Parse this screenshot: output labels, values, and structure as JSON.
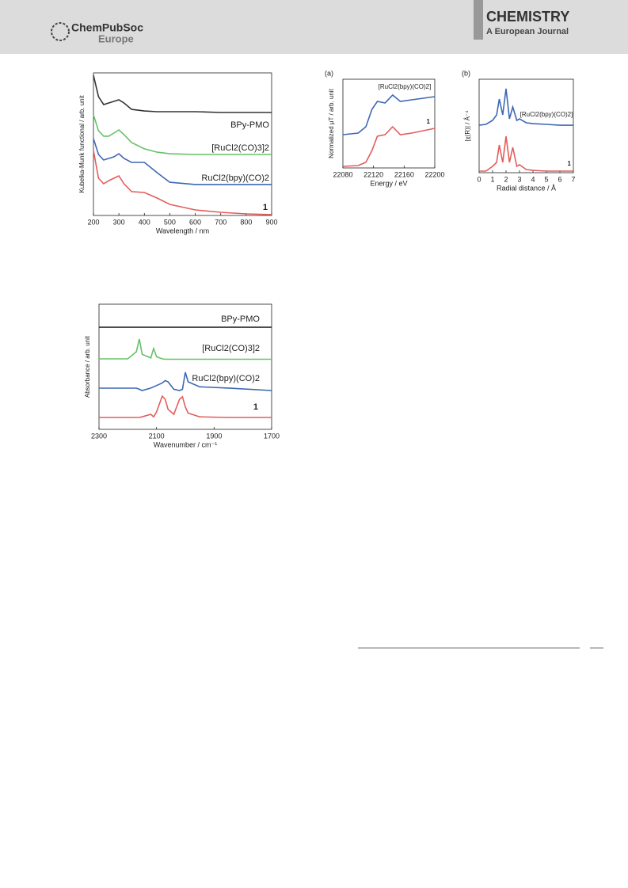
{
  "header": {
    "brand": "ChemPubSoc",
    "brand_sub": "Europe",
    "journal": "CHEMISTRY",
    "journal_sub": "A European Journal"
  },
  "chart_data": [
    {
      "type": "line",
      "xlabel": "Wavelength / nm",
      "ylabel": "Kubelka-Munk functional / arb. unit",
      "xlim": [
        200,
        900
      ],
      "ylim": [
        0,
        10
      ],
      "xticks": [
        200,
        300,
        400,
        500,
        600,
        700,
        800,
        900
      ],
      "x": [
        200,
        220,
        240,
        260,
        280,
        300,
        320,
        350,
        400,
        450,
        500,
        600,
        700,
        800,
        900
      ],
      "series": [
        {
          "name": "BPy-PMO",
          "color": "#333333",
          "values": [
            9.83,
            8.33,
            7.78,
            7.89,
            8.0,
            8.11,
            7.89,
            7.44,
            7.33,
            7.28,
            7.28,
            7.28,
            7.22,
            7.22,
            7.22
          ]
        },
        {
          "name": "[RuCl2(CO)3]2",
          "color": "#66c266",
          "values": [
            7.06,
            5.94,
            5.56,
            5.56,
            5.78,
            6.0,
            5.67,
            5.11,
            4.67,
            4.44,
            4.33,
            4.28,
            4.28,
            4.28,
            4.28
          ]
        },
        {
          "name": "RuCl2(bpy)(CO)2",
          "color": "#3d68b2",
          "values": [
            5.39,
            4.28,
            3.89,
            4.0,
            4.11,
            4.33,
            4.0,
            3.72,
            3.72,
            3.0,
            2.33,
            2.17,
            2.17,
            2.17,
            2.17
          ]
        },
        {
          "name": "1",
          "color": "#e35d5d",
          "values": [
            4.56,
            2.61,
            2.22,
            2.44,
            2.61,
            2.78,
            2.22,
            1.67,
            1.61,
            1.22,
            0.78,
            0.39,
            0.22,
            0.11,
            0.06
          ]
        }
      ]
    },
    {
      "type": "line",
      "xlabel": "Wavenumber / cm⁻¹",
      "ylabel": "Absorbance / arb. unit",
      "xlim": [
        2300,
        1700
      ],
      "ylim": [
        0,
        10
      ],
      "xticks": [
        2300,
        2100,
        1900,
        1700
      ],
      "x": [
        2300,
        2200,
        2170,
        2160,
        2150,
        2120,
        2110,
        2100,
        2080,
        2070,
        2060,
        2040,
        2020,
        2010,
        2000,
        1990,
        1950,
        1850,
        1700
      ],
      "series": [
        {
          "name": "BPy-PMO",
          "color": "#333333",
          "values": [
            8.16,
            8.16,
            8.16,
            8.16,
            8.16,
            8.16,
            8.16,
            8.16,
            8.16,
            8.16,
            8.16,
            8.16,
            8.16,
            8.16,
            8.16,
            8.16,
            8.16,
            8.16,
            8.16
          ]
        },
        {
          "name": "[RuCl2(CO)3]2",
          "color": "#66c266",
          "values": [
            5.63,
            5.63,
            6.2,
            7.22,
            6.0,
            5.7,
            6.46,
            5.8,
            5.63,
            5.6,
            5.6,
            5.6,
            5.6,
            5.6,
            5.6,
            5.6,
            5.6,
            5.6,
            5.6
          ]
        },
        {
          "name": "RuCl2(bpy)(CO)2",
          "color": "#3d68b2",
          "values": [
            3.29,
            3.29,
            3.29,
            3.2,
            3.1,
            3.3,
            3.4,
            3.5,
            3.7,
            3.9,
            3.8,
            3.2,
            3.1,
            3.2,
            4.56,
            3.8,
            3.4,
            3.3,
            3.1
          ]
        },
        {
          "name": "1",
          "color": "#e35d5d",
          "values": [
            0.95,
            0.95,
            0.95,
            0.95,
            1.0,
            1.2,
            1.0,
            1.4,
            2.66,
            2.4,
            1.6,
            1.2,
            2.4,
            2.6,
            1.8,
            1.3,
            1.0,
            0.95,
            0.95
          ]
        }
      ]
    },
    {
      "type": "line",
      "panel": "(a)",
      "xlabel": "Energy / eV",
      "ylabel": "Normalized μT / arb. unit",
      "xlim": [
        22080,
        22200
      ],
      "ylim": [
        0,
        10
      ],
      "xticks": [
        22080,
        22120,
        22160,
        22200
      ],
      "x": [
        22080,
        22100,
        22110,
        22118,
        22125,
        22135,
        22145,
        22155,
        22170,
        22185,
        22200
      ],
      "series": [
        {
          "name": "[RuCl2(bpy)(CO)2]",
          "color": "#3d68b2",
          "values": [
            3.75,
            3.93,
            4.64,
            6.61,
            7.5,
            7.32,
            8.21,
            7.5,
            7.68,
            7.86,
            8.04
          ]
        },
        {
          "name": "1",
          "color": "#e35d5d",
          "values": [
            0.18,
            0.27,
            0.63,
            1.96,
            3.57,
            3.75,
            4.64,
            3.75,
            3.93,
            4.2,
            4.46
          ]
        }
      ]
    },
    {
      "type": "line",
      "panel": "(b)",
      "xlabel": "Radial distance / Å",
      "ylabel": "|χ(R)| / Å⁻⁴",
      "xlim": [
        0,
        7
      ],
      "ylim": [
        0,
        10
      ],
      "xticks": [
        0,
        1,
        2,
        3,
        4,
        5,
        6,
        7
      ],
      "x": [
        0,
        0.5,
        1,
        1.3,
        1.5,
        1.75,
        2.0,
        2.25,
        2.5,
        2.8,
        3.0,
        3.5,
        4,
        5,
        6,
        7
      ],
      "series": [
        {
          "name": "[RuCl2(bpy)(CO)2]",
          "color": "#3d68b2",
          "values": [
            5.08,
            5.17,
            5.59,
            6.19,
            7.88,
            6.19,
            8.98,
            5.76,
            7.03,
            5.59,
            5.76,
            5.34,
            5.25,
            5.17,
            5.08,
            5.08
          ]
        },
        {
          "name": "1",
          "color": "#e35d5d",
          "values": [
            0.17,
            0.17,
            0.68,
            1.1,
            2.97,
            1.1,
            3.9,
            1.1,
            2.71,
            0.68,
            0.85,
            0.34,
            0.25,
            0.17,
            0.17,
            0.17
          ]
        }
      ]
    }
  ]
}
